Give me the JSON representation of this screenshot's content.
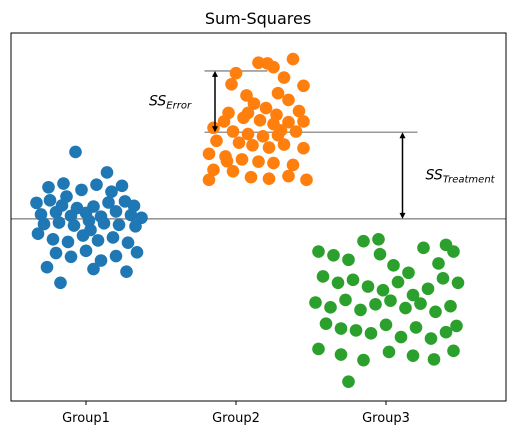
{
  "chart_data": {
    "type": "scatter",
    "title": "Sum-Squares",
    "xlabel": "",
    "ylabel": "",
    "xlim": [
      0.5,
      3.8
    ],
    "ylim": [
      -4.9,
      5.0
    ],
    "y_ticks_shown": false,
    "grid": false,
    "legend": "none",
    "categories": [
      "Group1",
      "Group2",
      "Group3"
    ],
    "category_positions": [
      1,
      2,
      3
    ],
    "grand_mean": 0.0,
    "series": [
      {
        "color": "#1f77b4",
        "values": [
          {
            "x": 0.67,
            "y": 0.43
          },
          {
            "x": 0.76,
            "y": 0.5
          },
          {
            "x": 0.84,
            "y": 0.36
          },
          {
            "x": 0.94,
            "y": 0.29
          },
          {
            "x": 1.05,
            "y": 0.33
          },
          {
            "x": 1.15,
            "y": 0.44
          },
          {
            "x": 1.26,
            "y": 0.47
          },
          {
            "x": 1.32,
            "y": 0.35
          },
          {
            "x": 0.7,
            "y": 0.12
          },
          {
            "x": 0.8,
            "y": 0.18
          },
          {
            "x": 0.9,
            "y": 0.08
          },
          {
            "x": 1.0,
            "y": 0.16
          },
          {
            "x": 1.1,
            "y": 0.06
          },
          {
            "x": 1.2,
            "y": 0.2
          },
          {
            "x": 1.3,
            "y": 0.1
          },
          {
            "x": 1.37,
            "y": 0.03
          },
          {
            "x": 0.72,
            "y": -0.14
          },
          {
            "x": 0.82,
            "y": -0.1
          },
          {
            "x": 0.92,
            "y": -0.18
          },
          {
            "x": 1.02,
            "y": -0.05
          },
          {
            "x": 1.12,
            "y": -0.12
          },
          {
            "x": 1.22,
            "y": -0.16
          },
          {
            "x": 1.33,
            "y": -0.2
          },
          {
            "x": 0.68,
            "y": -0.4
          },
          {
            "x": 0.78,
            "y": -0.55
          },
          {
            "x": 0.88,
            "y": -0.62
          },
          {
            "x": 0.98,
            "y": -0.45
          },
          {
            "x": 1.08,
            "y": -0.58
          },
          {
            "x": 1.18,
            "y": -0.5
          },
          {
            "x": 1.28,
            "y": -0.64
          },
          {
            "x": 0.75,
            "y": 0.85
          },
          {
            "x": 0.85,
            "y": 0.95
          },
          {
            "x": 0.97,
            "y": 0.78
          },
          {
            "x": 1.07,
            "y": 0.92
          },
          {
            "x": 1.17,
            "y": 0.73
          },
          {
            "x": 1.24,
            "y": 0.89
          },
          {
            "x": 0.8,
            "y": -0.92
          },
          {
            "x": 0.9,
            "y": -1.02
          },
          {
            "x": 1.0,
            "y": -0.86
          },
          {
            "x": 1.1,
            "y": -1.12
          },
          {
            "x": 1.2,
            "y": -1.0
          },
          {
            "x": 1.34,
            "y": -0.9
          },
          {
            "x": 0.74,
            "y": -1.3
          },
          {
            "x": 1.05,
            "y": -1.35
          },
          {
            "x": 1.27,
            "y": -1.42
          },
          {
            "x": 0.83,
            "y": -1.72
          },
          {
            "x": 0.93,
            "y": 1.8
          },
          {
            "x": 1.14,
            "y": 1.25
          },
          {
            "x": 0.87,
            "y": 0.6
          },
          {
            "x": 1.03,
            "y": -0.3
          }
        ]
      },
      {
        "color": "#ff7f0e",
        "values": [
          {
            "x": 2.38,
            "y": 4.3
          },
          {
            "x": 2.15,
            "y": 4.2
          },
          {
            "x": 2.21,
            "y": 4.18
          },
          {
            "x": 2.25,
            "y": 4.08
          },
          {
            "x": 2.0,
            "y": 3.92
          },
          {
            "x": 2.32,
            "y": 3.8
          },
          {
            "x": 2.45,
            "y": 3.58
          },
          {
            "x": 1.97,
            "y": 3.62
          },
          {
            "x": 2.28,
            "y": 3.38
          },
          {
            "x": 2.07,
            "y": 3.32
          },
          {
            "x": 2.12,
            "y": 3.1
          },
          {
            "x": 2.2,
            "y": 2.98
          },
          {
            "x": 2.35,
            "y": 3.2
          },
          {
            "x": 2.42,
            "y": 2.9
          },
          {
            "x": 1.95,
            "y": 2.85
          },
          {
            "x": 2.27,
            "y": 2.8
          },
          {
            "x": 1.92,
            "y": 2.62
          },
          {
            "x": 2.05,
            "y": 2.72
          },
          {
            "x": 2.16,
            "y": 2.65
          },
          {
            "x": 2.25,
            "y": 2.55
          },
          {
            "x": 2.35,
            "y": 2.6
          },
          {
            "x": 2.45,
            "y": 2.62
          },
          {
            "x": 1.85,
            "y": 2.45
          },
          {
            "x": 1.98,
            "y": 2.35
          },
          {
            "x": 2.08,
            "y": 2.28
          },
          {
            "x": 2.18,
            "y": 2.22
          },
          {
            "x": 2.28,
            "y": 2.25
          },
          {
            "x": 2.4,
            "y": 2.35
          },
          {
            "x": 1.87,
            "y": 2.1
          },
          {
            "x": 2.02,
            "y": 2.05
          },
          {
            "x": 2.11,
            "y": 1.98
          },
          {
            "x": 2.22,
            "y": 1.92
          },
          {
            "x": 2.32,
            "y": 2.0
          },
          {
            "x": 2.45,
            "y": 1.9
          },
          {
            "x": 1.82,
            "y": 1.75
          },
          {
            "x": 1.93,
            "y": 1.68
          },
          {
            "x": 2.04,
            "y": 1.6
          },
          {
            "x": 2.15,
            "y": 1.54
          },
          {
            "x": 2.25,
            "y": 1.5
          },
          {
            "x": 2.38,
            "y": 1.45
          },
          {
            "x": 1.85,
            "y": 1.32
          },
          {
            "x": 1.98,
            "y": 1.28
          },
          {
            "x": 2.1,
            "y": 1.12
          },
          {
            "x": 2.22,
            "y": 1.08
          },
          {
            "x": 2.35,
            "y": 1.15
          },
          {
            "x": 2.47,
            "y": 1.05
          },
          {
            "x": 1.82,
            "y": 1.05
          },
          {
            "x": 1.94,
            "y": 1.55
          },
          {
            "x": 2.08,
            "y": 2.85
          },
          {
            "x": 2.3,
            "y": 2.38
          }
        ]
      },
      {
        "color": "#2ca02c",
        "values": [
          {
            "x": 2.55,
            "y": -0.88
          },
          {
            "x": 2.65,
            "y": -0.98
          },
          {
            "x": 2.75,
            "y": -1.1
          },
          {
            "x": 2.85,
            "y": -0.6
          },
          {
            "x": 2.96,
            "y": -0.95
          },
          {
            "x": 3.05,
            "y": -1.25
          },
          {
            "x": 3.15,
            "y": -1.45
          },
          {
            "x": 3.25,
            "y": -0.78
          },
          {
            "x": 3.35,
            "y": -1.2
          },
          {
            "x": 3.45,
            "y": -0.88
          },
          {
            "x": 2.58,
            "y": -1.55
          },
          {
            "x": 2.68,
            "y": -1.72
          },
          {
            "x": 2.78,
            "y": -1.64
          },
          {
            "x": 2.88,
            "y": -1.82
          },
          {
            "x": 2.98,
            "y": -1.92
          },
          {
            "x": 3.08,
            "y": -1.7
          },
          {
            "x": 3.18,
            "y": -2.05
          },
          {
            "x": 3.28,
            "y": -1.88
          },
          {
            "x": 3.38,
            "y": -1.6
          },
          {
            "x": 3.48,
            "y": -1.72
          },
          {
            "x": 2.53,
            "y": -2.25
          },
          {
            "x": 2.63,
            "y": -2.38
          },
          {
            "x": 2.73,
            "y": -2.18
          },
          {
            "x": 2.83,
            "y": -2.45
          },
          {
            "x": 2.93,
            "y": -2.3
          },
          {
            "x": 3.03,
            "y": -2.2
          },
          {
            "x": 3.13,
            "y": -2.4
          },
          {
            "x": 3.23,
            "y": -2.28
          },
          {
            "x": 3.33,
            "y": -2.5
          },
          {
            "x": 3.43,
            "y": -2.35
          },
          {
            "x": 2.6,
            "y": -2.82
          },
          {
            "x": 2.7,
            "y": -2.95
          },
          {
            "x": 2.8,
            "y": -3.0
          },
          {
            "x": 2.9,
            "y": -3.08
          },
          {
            "x": 3.0,
            "y": -2.85
          },
          {
            "x": 3.1,
            "y": -3.18
          },
          {
            "x": 3.2,
            "y": -2.92
          },
          {
            "x": 3.3,
            "y": -3.22
          },
          {
            "x": 3.4,
            "y": -3.05
          },
          {
            "x": 3.47,
            "y": -2.88
          },
          {
            "x": 2.55,
            "y": -3.5
          },
          {
            "x": 2.7,
            "y": -3.65
          },
          {
            "x": 2.85,
            "y": -3.8
          },
          {
            "x": 3.02,
            "y": -3.58
          },
          {
            "x": 3.18,
            "y": -3.68
          },
          {
            "x": 3.32,
            "y": -3.78
          },
          {
            "x": 3.45,
            "y": -3.55
          },
          {
            "x": 2.75,
            "y": -4.38
          },
          {
            "x": 2.95,
            "y": -0.55
          },
          {
            "x": 3.4,
            "y": -0.7
          }
        ]
      }
    ],
    "annotations": [
      {
        "text": "SS",
        "subscript": "Error",
        "arrow_from_y": 3.98,
        "arrow_to_y": 2.33,
        "arrow_x": 1.86
      },
      {
        "text": "SS",
        "subscript": "Treatment",
        "arrow_from_y": 2.33,
        "arrow_to_y": 0.0,
        "arrow_x": 3.11
      }
    ],
    "reference_lines": [
      {
        "y": 0.0,
        "x_from": 0.5,
        "x_to": 3.8,
        "color": "#999999"
      },
      {
        "y": 2.33,
        "x_from": 1.79,
        "x_to": 3.21,
        "color": "#999999"
      },
      {
        "y": 3.98,
        "x_from": 1.79,
        "x_to": 2.21,
        "color": "#999999"
      }
    ]
  }
}
